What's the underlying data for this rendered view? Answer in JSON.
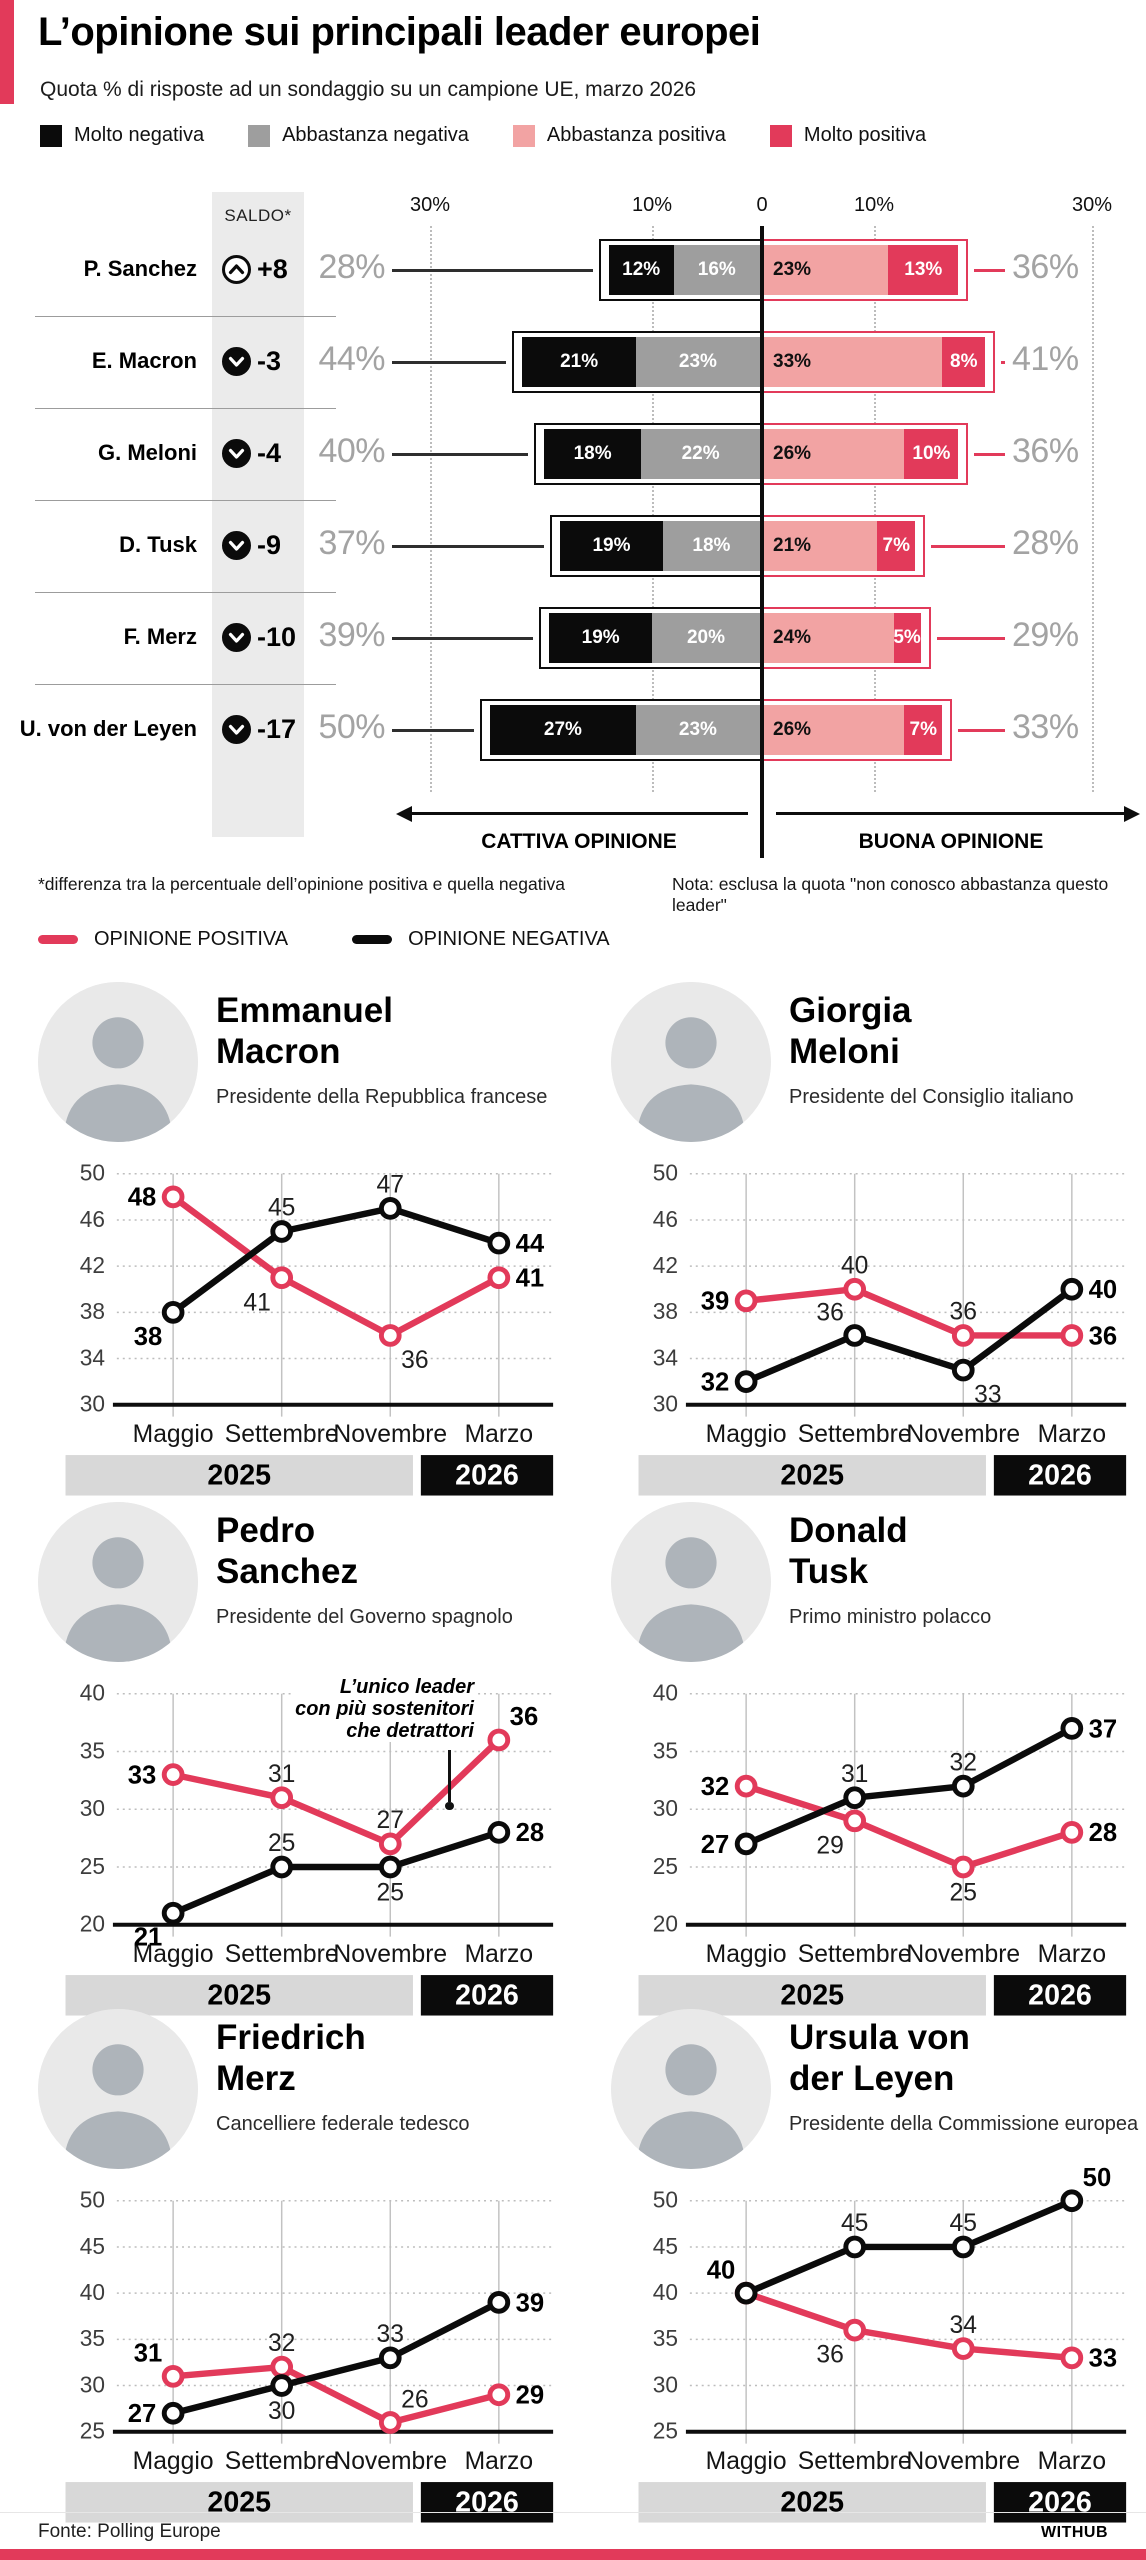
{
  "accent_color": "#e23a5a",
  "colors": {
    "molto_negativa": "#0b0b0b",
    "abbastanza_negativa": "#9e9e9e",
    "abbastanza_positiva": "#f2a3a3",
    "molto_positiva": "#e23a5a",
    "band_2025": "#d8d8d8",
    "band_2026": "#0b0b0b"
  },
  "header": {
    "title": "L’opinione sui principali leader europei",
    "subtitle": "Quota % di risposte ad un sondaggio su un campione UE, marzo 2026",
    "legend": [
      {
        "label": "Molto negativa",
        "color": "#0b0b0b"
      },
      {
        "label": "Abbastanza negativa",
        "color": "#9e9e9e"
      },
      {
        "label": "Abbastanza positiva",
        "color": "#f2a3a3"
      },
      {
        "label": "Molto positiva",
        "color": "#e23a5a"
      }
    ]
  },
  "line_legend": [
    {
      "label": "OPINIONE POSITIVA",
      "color": "#e23a5a"
    },
    {
      "label": "OPINIONE NEGATIVA",
      "color": "#0b0b0b"
    }
  ],
  "footer": {
    "source": "Fonte: Polling Europe",
    "brand": "WITHUB"
  },
  "chart_data": [
    {
      "type": "bar",
      "subtype": "diverging-stacked",
      "title": "Opinione sui leader europei, marzo 2026",
      "saldo_header": "SALDO*",
      "axis_ticks": [
        "30%",
        "10%",
        "0",
        "10%",
        "30%"
      ],
      "axis_range_pct": 30,
      "series_names": [
        "Molto negativa",
        "Abbastanza negativa",
        "Abbastanza positiva",
        "Molto positiva"
      ],
      "left_arrow_label": "CATTIVA OPINIONE",
      "right_arrow_label": "BUONA OPINIONE",
      "footnote_left": "*differenza tra la percentuale dell’opinione positiva e quella negativa",
      "footnote_right": "Nota: esclusa la quota \"non conosco abbastanza questo leader\"",
      "rows": [
        {
          "name": "P. Sanchez",
          "saldo": "+8",
          "trend": "up",
          "neg_total": "28%",
          "pos_total": "36%",
          "values": [
            12,
            16,
            23,
            13
          ]
        },
        {
          "name": "E. Macron",
          "saldo": "-3",
          "trend": "down",
          "neg_total": "44%",
          "pos_total": "41%",
          "values": [
            21,
            23,
            33,
            8
          ]
        },
        {
          "name": "G. Meloni",
          "saldo": "-4",
          "trend": "down",
          "neg_total": "40%",
          "pos_total": "36%",
          "values": [
            18,
            22,
            26,
            10
          ]
        },
        {
          "name": "D. Tusk",
          "saldo": "-9",
          "trend": "down",
          "neg_total": "37%",
          "pos_total": "28%",
          "values": [
            19,
            18,
            21,
            7
          ]
        },
        {
          "name": "F. Merz",
          "saldo": "-10",
          "trend": "down",
          "neg_total": "39%",
          "pos_total": "29%",
          "values": [
            19,
            20,
            24,
            5
          ]
        },
        {
          "name": "U. von der Leyen",
          "saldo": "-17",
          "trend": "down",
          "neg_total": "50%",
          "pos_total": "33%",
          "values": [
            27,
            23,
            26,
            7
          ]
        }
      ]
    },
    {
      "type": "line",
      "id": "macron",
      "name_lines": [
        "Emmanuel",
        "Macron"
      ],
      "role": "Presidente della Repubblica francese",
      "categories": [
        "Maggio",
        "Settembre",
        "Novembre",
        "Marzo"
      ],
      "year_bands": [
        "2025",
        "2026"
      ],
      "ymin": 30,
      "ymax": 50,
      "yticks": [
        50,
        46,
        42,
        38,
        34,
        30
      ],
      "series": [
        {
          "name": "OPINIONE POSITIVA",
          "color": "#e23a5a",
          "values": [
            48,
            41,
            36,
            41
          ],
          "labels": [
            {
              "pos": "l",
              "bold": true
            },
            {
              "pos": "bl"
            },
            {
              "pos": "br"
            },
            {
              "pos": "r",
              "bold": true
            }
          ]
        },
        {
          "name": "OPINIONE NEGATIVA",
          "color": "#0b0b0b",
          "values": [
            38,
            45,
            47,
            44
          ],
          "labels": [
            {
              "pos": "bl",
              "bold": true
            },
            {
              "pos": "t"
            },
            {
              "pos": "t"
            },
            {
              "pos": "r",
              "bold": true
            }
          ]
        }
      ]
    },
    {
      "type": "line",
      "id": "meloni",
      "name_lines": [
        "Giorgia",
        "Meloni"
      ],
      "role": "Presidente del Consiglio italiano",
      "categories": [
        "Maggio",
        "Settembre",
        "Novembre",
        "Marzo"
      ],
      "year_bands": [
        "2025",
        "2026"
      ],
      "ymin": 30,
      "ymax": 50,
      "yticks": [
        50,
        46,
        42,
        38,
        34,
        30
      ],
      "series": [
        {
          "name": "OPINIONE POSITIVA",
          "color": "#e23a5a",
          "values": [
            39,
            40,
            36,
            36
          ],
          "labels": [
            {
              "pos": "l",
              "bold": true
            },
            {
              "pos": "t"
            },
            {
              "pos": "t"
            },
            {
              "pos": "r",
              "bold": true
            }
          ]
        },
        {
          "name": "OPINIONE NEGATIVA",
          "color": "#0b0b0b",
          "values": [
            32,
            36,
            33,
            40
          ],
          "labels": [
            {
              "pos": "l",
              "bold": true
            },
            {
              "pos": "tl"
            },
            {
              "pos": "br"
            },
            {
              "pos": "r",
              "bold": true
            }
          ]
        }
      ]
    },
    {
      "type": "line",
      "id": "sanchez",
      "name_lines": [
        "Pedro",
        "Sanchez"
      ],
      "role": "Presidente del Governo spagnolo",
      "annotation": "L’unico leader\ncon più sostenitori\nche detrattori",
      "categories": [
        "Maggio",
        "Settembre",
        "Novembre",
        "Marzo"
      ],
      "year_bands": [
        "2025",
        "2026"
      ],
      "ymin": 20,
      "ymax": 40,
      "yticks": [
        40,
        35,
        30,
        25,
        20
      ],
      "series": [
        {
          "name": "OPINIONE POSITIVA",
          "color": "#e23a5a",
          "values": [
            33,
            31,
            27,
            36
          ],
          "labels": [
            {
              "pos": "l",
              "bold": true
            },
            {
              "pos": "t"
            },
            {
              "pos": "t"
            },
            {
              "pos": "tr",
              "bold": true
            }
          ]
        },
        {
          "name": "OPINIONE NEGATIVA",
          "color": "#0b0b0b",
          "values": [
            21,
            25,
            25,
            28
          ],
          "labels": [
            {
              "pos": "bl",
              "bold": true
            },
            {
              "pos": "t"
            },
            {
              "pos": "b"
            },
            {
              "pos": "r",
              "bold": true
            }
          ]
        }
      ]
    },
    {
      "type": "line",
      "id": "tusk",
      "name_lines": [
        "Donald",
        "Tusk"
      ],
      "role": "Primo ministro polacco",
      "categories": [
        "Maggio",
        "Settembre",
        "Novembre",
        "Marzo"
      ],
      "year_bands": [
        "2025",
        "2026"
      ],
      "ymin": 20,
      "ymax": 40,
      "yticks": [
        40,
        35,
        30,
        25,
        20
      ],
      "series": [
        {
          "name": "OPINIONE POSITIVA",
          "color": "#e23a5a",
          "values": [
            32,
            29,
            25,
            28
          ],
          "labels": [
            {
              "pos": "l",
              "bold": true
            },
            {
              "pos": "bl"
            },
            {
              "pos": "b"
            },
            {
              "pos": "r",
              "bold": true
            }
          ]
        },
        {
          "name": "OPINIONE NEGATIVA",
          "color": "#0b0b0b",
          "values": [
            27,
            31,
            32,
            37
          ],
          "labels": [
            {
              "pos": "l",
              "bold": true
            },
            {
              "pos": "t"
            },
            {
              "pos": "t"
            },
            {
              "pos": "r",
              "bold": true
            }
          ]
        }
      ]
    },
    {
      "type": "line",
      "id": "merz",
      "name_lines": [
        "Friedrich",
        "Merz"
      ],
      "role": "Cancelliere federale tedesco",
      "categories": [
        "Maggio",
        "Settembre",
        "Novembre",
        "Marzo"
      ],
      "year_bands": [
        "2025",
        "2026"
      ],
      "ymin": 25,
      "ymax": 50,
      "yticks": [
        50,
        45,
        40,
        35,
        30,
        25
      ],
      "series": [
        {
          "name": "OPINIONE POSITIVA",
          "color": "#e23a5a",
          "values": [
            31,
            32,
            26,
            29
          ],
          "labels": [
            {
              "pos": "tl",
              "bold": true
            },
            {
              "pos": "t"
            },
            {
              "pos": "tr"
            },
            {
              "pos": "r",
              "bold": true
            }
          ]
        },
        {
          "name": "OPINIONE NEGATIVA",
          "color": "#0b0b0b",
          "values": [
            27,
            30,
            33,
            39
          ],
          "labels": [
            {
              "pos": "l",
              "bold": true
            },
            {
              "pos": "b"
            },
            {
              "pos": "t"
            },
            {
              "pos": "r",
              "bold": true
            }
          ]
        }
      ]
    },
    {
      "type": "line",
      "id": "von-der-leyen",
      "name_lines": [
        "Ursula von",
        "der Leyen"
      ],
      "role": "Presidente della Commissione europea",
      "categories": [
        "Maggio",
        "Settembre",
        "Novembre",
        "Marzo"
      ],
      "year_bands": [
        "2025",
        "2026"
      ],
      "ymin": 25,
      "ymax": 50,
      "yticks": [
        50,
        45,
        40,
        35,
        30,
        25
      ],
      "series": [
        {
          "name": "OPINIONE POSITIVA",
          "color": "#e23a5a",
          "values": [
            40,
            36,
            34,
            33
          ],
          "labels": [
            {
              "hide": true
            },
            {
              "pos": "bl"
            },
            {
              "pos": "t"
            },
            {
              "pos": "r",
              "bold": true
            }
          ]
        },
        {
          "name": "OPINIONE NEGATIVA",
          "color": "#0b0b0b",
          "values": [
            40,
            45,
            45,
            50
          ],
          "labels": [
            {
              "pos": "tl",
              "bold": true
            },
            {
              "pos": "t"
            },
            {
              "pos": "t"
            },
            {
              "pos": "tr",
              "bold": true
            }
          ]
        }
      ]
    }
  ]
}
